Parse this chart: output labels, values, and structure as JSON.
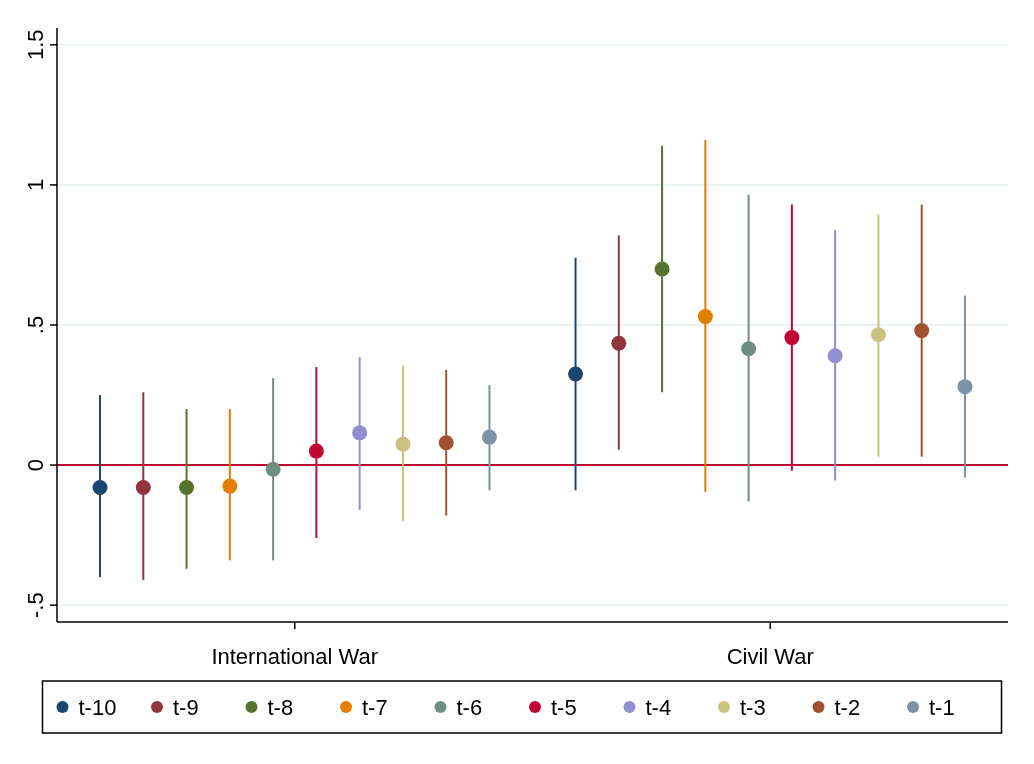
{
  "chart_data": {
    "type": "scatter",
    "categories": [
      "International War",
      "Civil War"
    ],
    "ylim": [
      -0.56,
      1.56
    ],
    "yticks": [
      {
        "value": -0.5,
        "label": "-.5"
      },
      0,
      {
        "value": 0.5,
        "label": ".5"
      },
      1,
      1.5
    ],
    "grid": "y",
    "legend": "bottom",
    "marker": "circle",
    "ref_lines": [
      {
        "axis": "y",
        "value": 0,
        "color": "#c10534"
      }
    ],
    "series": [
      {
        "name": "t-10",
        "color": "#1a476f",
        "values": [
          -0.08,
          0.325
        ],
        "errors": [
          [
            -0.4,
            0.25
          ],
          [
            -0.09,
            0.74
          ]
        ]
      },
      {
        "name": "t-9",
        "color": "#90353b",
        "values": [
          -0.08,
          0.435
        ],
        "errors": [
          [
            -0.41,
            0.26
          ],
          [
            0.055,
            0.82
          ]
        ]
      },
      {
        "name": "t-8",
        "color": "#55752f",
        "values": [
          -0.08,
          0.7
        ],
        "errors": [
          [
            -0.37,
            0.2
          ],
          [
            0.26,
            1.14
          ]
        ]
      },
      {
        "name": "t-7",
        "color": "#e37e00",
        "values": [
          -0.075,
          0.53
        ],
        "errors": [
          [
            -0.34,
            0.2
          ],
          [
            -0.095,
            1.16
          ]
        ]
      },
      {
        "name": "t-6",
        "color": "#6e8e84",
        "values": [
          -0.015,
          0.415
        ],
        "errors": [
          [
            -0.34,
            0.31
          ],
          [
            -0.13,
            0.965
          ]
        ]
      },
      {
        "name": "t-5",
        "color": "#c10534",
        "values": [
          0.05,
          0.455
        ],
        "errors": [
          [
            -0.26,
            0.35
          ],
          [
            -0.02,
            0.93
          ]
        ]
      },
      {
        "name": "t-4",
        "color": "#938dd2",
        "values": [
          0.115,
          0.39
        ],
        "errors": [
          [
            -0.16,
            0.385
          ],
          [
            -0.055,
            0.84
          ]
        ]
      },
      {
        "name": "t-3",
        "color": "#cac27e",
        "values": [
          0.075,
          0.465
        ],
        "errors": [
          [
            -0.2,
            0.355
          ],
          [
            0.03,
            0.895
          ]
        ]
      },
      {
        "name": "t-2",
        "color": "#a0522d",
        "values": [
          0.08,
          0.48
        ],
        "errors": [
          [
            -0.18,
            0.34
          ],
          [
            0.03,
            0.93
          ]
        ]
      },
      {
        "name": "t-1",
        "color": "#7b92a8",
        "values": [
          0.1,
          0.28
        ],
        "errors": [
          [
            -0.09,
            0.285
          ],
          [
            -0.045,
            0.605
          ]
        ]
      }
    ]
  }
}
